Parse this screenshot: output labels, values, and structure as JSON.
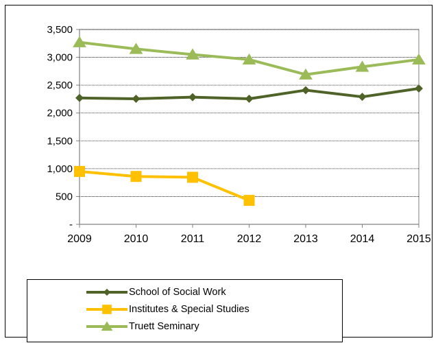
{
  "chart_data": {
    "type": "line",
    "title": "",
    "xlabel": "",
    "ylabel": "",
    "x": [
      "2009",
      "2010",
      "2011",
      "2012",
      "2013",
      "2014",
      "2015"
    ],
    "ylim": [
      0,
      3500
    ],
    "yticks": [
      0,
      500,
      1000,
      1500,
      2000,
      2500,
      3000,
      3500
    ],
    "ytick_labels": [
      "-",
      "500",
      "1,000",
      "1,500",
      "2,000",
      "2,500",
      "3,000",
      "3,500"
    ],
    "grid": true,
    "legend_position": "bottom",
    "series": [
      {
        "name": "School of Social Work",
        "color": "#4f6228",
        "marker": "diamond",
        "values": [
          2270,
          2255,
          2285,
          2255,
          2410,
          2290,
          2440
        ]
      },
      {
        "name": "Institutes & Special Studies",
        "color": "#ffc000",
        "marker": "square",
        "values": [
          950,
          860,
          845,
          430,
          null,
          null,
          null
        ]
      },
      {
        "name": "Truett Seminary",
        "color": "#9bbb59",
        "marker": "triangle",
        "values": [
          3270,
          3150,
          3050,
          2960,
          2690,
          2830,
          2960
        ]
      }
    ]
  }
}
